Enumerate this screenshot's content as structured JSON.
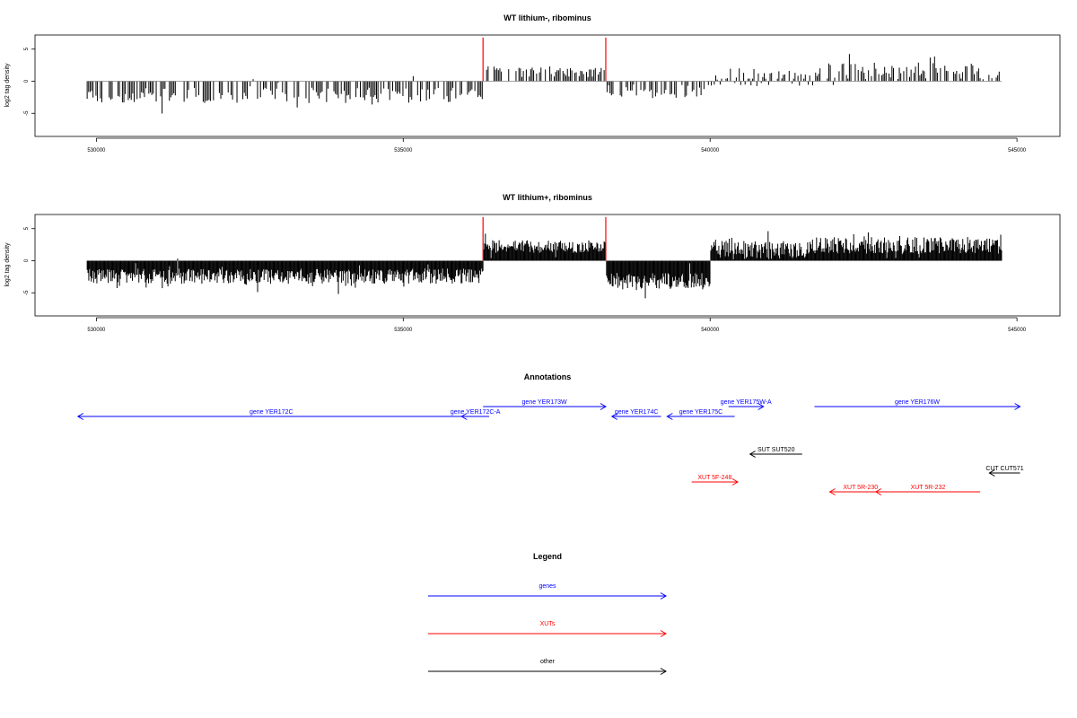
{
  "figure": {
    "annotations_title": "Annotations",
    "legend_title": "Legend"
  },
  "chart_data": [
    {
      "type": "bar",
      "title": "WT lithium-, ribominus",
      "xlabel": "",
      "ylabel": "log2 tag density",
      "xlim": [
        529000,
        545700
      ],
      "ylim": [
        -8.6,
        7.2
      ],
      "xticks": [
        530000,
        535000,
        540000,
        545000
      ],
      "yticks": [
        -5,
        0,
        5
      ],
      "data_range": [
        529850,
        544750
      ],
      "density": 0.55,
      "seed": 11,
      "segments": [
        {
          "from": 529850,
          "to": 536300,
          "mean": -2.2,
          "spread": 1.2
        },
        {
          "from": 536300,
          "to": 538300,
          "mean": 1.4,
          "spread": 0.9
        },
        {
          "from": 538300,
          "to": 540000,
          "mean": -1.6,
          "spread": 1.1
        },
        {
          "from": 540000,
          "to": 541600,
          "mean": 0.6,
          "spread": 1.4
        },
        {
          "from": 541600,
          "to": 544750,
          "mean": 1.6,
          "spread": 1.3
        }
      ],
      "markers": [
        {
          "x": 536300,
          "y": 6.8,
          "color": "#ff0000"
        },
        {
          "x": 538300,
          "y": 6.8,
          "color": "#ff0000"
        }
      ]
    },
    {
      "type": "bar",
      "title": "WT lithium+, ribominus",
      "xlabel": "",
      "ylabel": "log2 tag density",
      "xlim": [
        529000,
        545700
      ],
      "ylim": [
        -8.6,
        7.2
      ],
      "xticks": [
        530000,
        535000,
        540000,
        545000
      ],
      "yticks": [
        -5,
        0,
        5
      ],
      "data_range": [
        529850,
        544750
      ],
      "density": 1.0,
      "seed": 29,
      "segments": [
        {
          "from": 529850,
          "to": 536300,
          "mean": -2.4,
          "spread": 1.2
        },
        {
          "from": 536300,
          "to": 538300,
          "mean": 2.2,
          "spread": 1.0
        },
        {
          "from": 538300,
          "to": 540000,
          "mean": -3.2,
          "spread": 1.3
        },
        {
          "from": 540000,
          "to": 541600,
          "mean": 1.6,
          "spread": 1.5
        },
        {
          "from": 541600,
          "to": 544750,
          "mean": 2.4,
          "spread": 1.3
        }
      ],
      "markers": [
        {
          "x": 536300,
          "y": 6.8,
          "color": "#ff0000"
        },
        {
          "x": 538300,
          "y": 6.8,
          "color": "#ff0000"
        }
      ]
    }
  ],
  "annotations": {
    "xlim": [
      529000,
      545700
    ],
    "features": [
      {
        "label": "gene YER172C",
        "start": 536000,
        "end": 529700,
        "row": 1,
        "color": "#0000ff"
      },
      {
        "label": "gene YER172C-A",
        "start": 536400,
        "end": 535950,
        "row": 1,
        "color": "#0000ff"
      },
      {
        "label": "gene YER173W",
        "start": 536300,
        "end": 538300,
        "row": 0,
        "color": "#0000ff"
      },
      {
        "label": "gene YER174C",
        "start": 539200,
        "end": 538400,
        "row": 1,
        "color": "#0000ff"
      },
      {
        "label": "gene YER175C",
        "start": 540400,
        "end": 539300,
        "row": 1,
        "color": "#0000ff"
      },
      {
        "label": "gene YER175W-A",
        "start": 540300,
        "end": 540870,
        "row": 0,
        "color": "#0000ff"
      },
      {
        "label": "gene YER176W",
        "start": 541700,
        "end": 545050,
        "row": 0,
        "color": "#0000ff"
      },
      {
        "label": "SUT SUT520",
        "start": 541500,
        "end": 540650,
        "row": 2,
        "color": "#000000"
      },
      {
        "label": "CUT CUT571",
        "start": 545050,
        "end": 544550,
        "row": 3,
        "color": "#000000"
      },
      {
        "label": "XUT 5F-248",
        "start": 539700,
        "end": 540450,
        "row": 4,
        "color": "#ff0000"
      },
      {
        "label": "XUT 5R-230",
        "start": 542950,
        "end": 541950,
        "row": 5,
        "color": "#ff0000"
      },
      {
        "label": "XUT 5R-232",
        "start": 544400,
        "end": 542700,
        "row": 5,
        "color": "#ff0000"
      }
    ]
  },
  "legend": {
    "items": [
      {
        "label": "genes",
        "color": "#0000ff"
      },
      {
        "label": "XUTs",
        "color": "#ff0000"
      },
      {
        "label": "other",
        "color": "#000000"
      }
    ]
  }
}
